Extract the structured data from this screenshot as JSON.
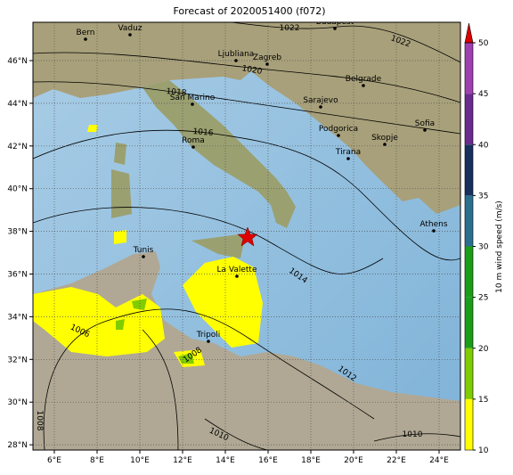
{
  "title": "Forecast of 2020051400 (f072)",
  "xticks": [
    {
      "value": 6,
      "label": "6°E"
    },
    {
      "value": 8,
      "label": "8°E"
    },
    {
      "value": 10,
      "label": "10°E"
    },
    {
      "value": 12,
      "label": "12°E"
    },
    {
      "value": 14,
      "label": "14°E"
    },
    {
      "value": 16,
      "label": "16°E"
    },
    {
      "value": 18,
      "label": "18°E"
    },
    {
      "value": 20,
      "label": "20°E"
    },
    {
      "value": 22,
      "label": "22°E"
    },
    {
      "value": 24,
      "label": "24°E"
    }
  ],
  "yticks": [
    {
      "value": 28,
      "label": "28°N"
    },
    {
      "value": 30,
      "label": "30°N"
    },
    {
      "value": 32,
      "label": "32°N"
    },
    {
      "value": 34,
      "label": "34°N"
    },
    {
      "value": 36,
      "label": "36°N"
    },
    {
      "value": 38,
      "label": "38°N"
    },
    {
      "value": 40,
      "label": "40°N"
    },
    {
      "value": 42,
      "label": "42°N"
    },
    {
      "value": 44,
      "label": "44°N"
    },
    {
      "value": 46,
      "label": "46°N"
    }
  ],
  "cities": [
    "Bern",
    "Vaduz",
    "Budapest",
    "Ljubliana",
    "Zagreb",
    "Belgrade",
    "San Marino",
    "Sarajevo",
    "Podgorica",
    "Skopje",
    "Tirana",
    "Sofia",
    "Roma",
    "Athens",
    "Tunis",
    "La Valette",
    "Tripoli"
  ],
  "isobar_labels": [
    1022,
    1022,
    1020,
    1018,
    1016,
    1014,
    1012,
    1010,
    1010,
    1008,
    1006,
    1008
  ],
  "colorbar": {
    "label": "10 m wind speed (m/s)",
    "ticks": [
      10,
      15,
      20,
      25,
      30,
      35,
      40,
      45,
      50
    ],
    "colors": [
      "#ffff00",
      "#80cc00",
      "#1a9e1a",
      "#1a9e1a",
      "#2a6e90",
      "#17305e",
      "#6a2a90",
      "#a040b0"
    ],
    "extend_color": "#dd0000"
  }
}
